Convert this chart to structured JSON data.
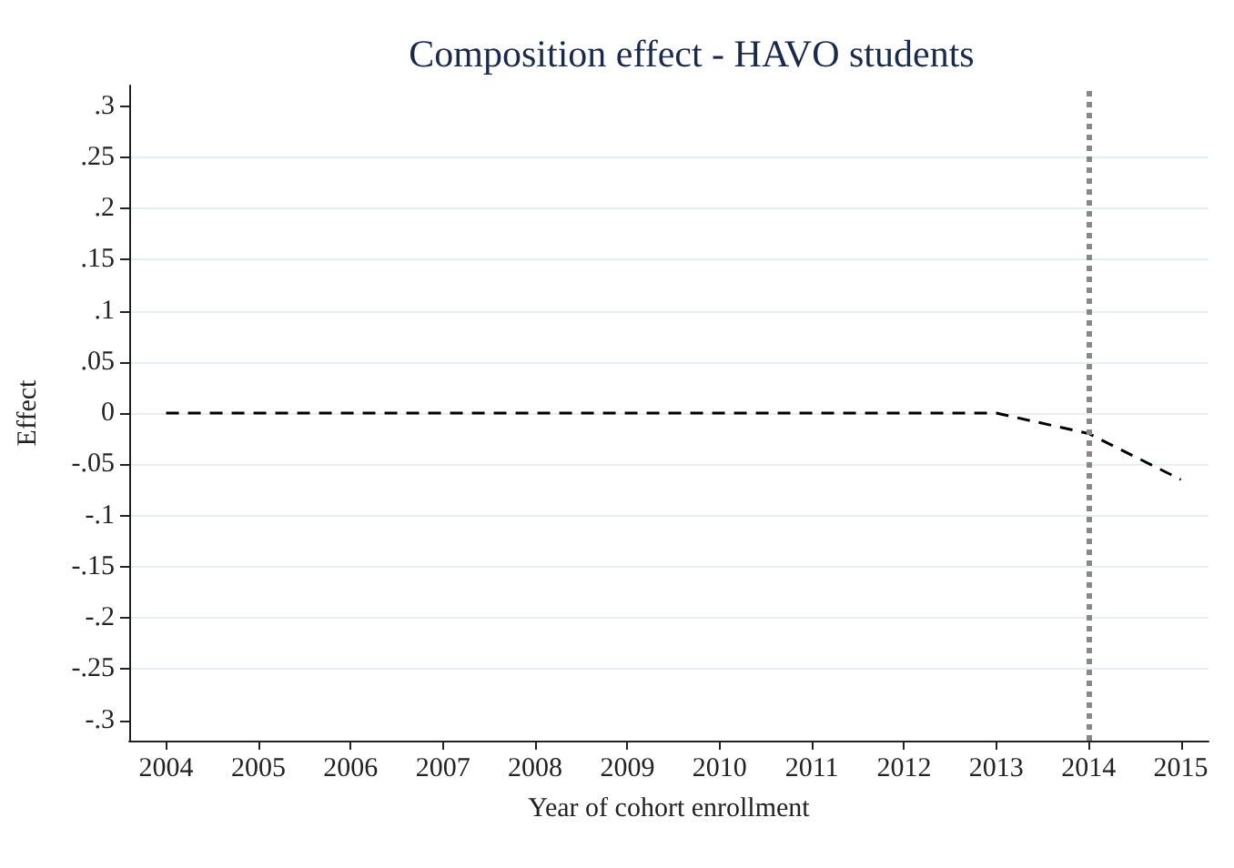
{
  "chart_data": {
    "type": "line",
    "title": "Composition effect - HAVO students",
    "xlabel": "Year of cohort enrollment",
    "ylabel": "Effect",
    "x": [
      2004,
      2005,
      2006,
      2007,
      2008,
      2009,
      2010,
      2011,
      2012,
      2013,
      2014,
      2015
    ],
    "series": [
      {
        "color": "#000000",
        "values": [
          0,
          0,
          0,
          0,
          0,
          0,
          0,
          0,
          0,
          0,
          -0.02,
          -0.065
        ]
      }
    ],
    "xlim": [
      2003.6,
      2015.3
    ],
    "xticks": [
      2004,
      2005,
      2006,
      2007,
      2008,
      2009,
      2010,
      2011,
      2012,
      2013,
      2014,
      2015
    ],
    "ylim": [
      -0.32,
      0.32
    ],
    "yticks": [
      {
        "value": -0.3,
        "label": "-.3"
      },
      {
        "value": -0.25,
        "label": "-.25"
      },
      {
        "value": -0.2,
        "label": "-.2"
      },
      {
        "value": -0.15,
        "label": "-.15"
      },
      {
        "value": -0.1,
        "label": "-.1"
      },
      {
        "value": -0.05,
        "label": "-.05"
      },
      0,
      {
        "value": 0.05,
        "label": ".05"
      },
      {
        "value": 0.1,
        "label": ".1"
      },
      {
        "value": 0.15,
        "label": ".15"
      },
      {
        "value": 0.2,
        "label": ".2"
      },
      {
        "value": 0.25,
        "label": ".25"
      },
      {
        "value": 0.3,
        "label": ".3"
      }
    ],
    "ref_lines": [
      {
        "axis": "x",
        "value": 2014,
        "color": "#888888",
        "line_style": "dotted"
      }
    ],
    "grid": "y",
    "marker": "none",
    "line_style": "dashed"
  }
}
